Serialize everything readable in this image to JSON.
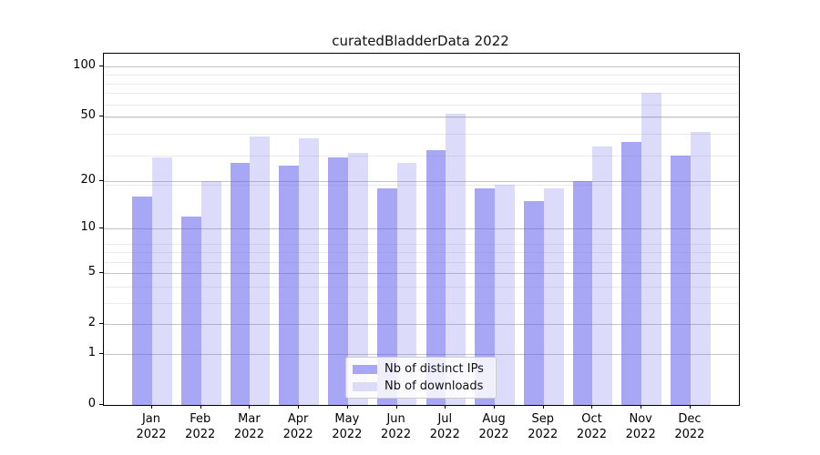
{
  "title": "curatedBladderData 2022",
  "legend": {
    "items": [
      {
        "label": "Nb of distinct IPs",
        "color": "#a7a7f5"
      },
      {
        "label": "Nb of downloads",
        "color": "#dcdcf9"
      }
    ]
  },
  "chart_data": {
    "type": "bar",
    "title": "curatedBladderData 2022",
    "categories": [
      "Jan 2022",
      "Feb 2022",
      "Mar 2022",
      "Apr 2022",
      "May 2022",
      "Jun 2022",
      "Jul 2022",
      "Aug 2022",
      "Sep 2022",
      "Oct 2022",
      "Nov 2022",
      "Dec 2022"
    ],
    "series": [
      {
        "name": "Nb of distinct IPs",
        "color": "rgba(95,95,237,0.55)",
        "swatch": "#a7a7f5",
        "values": [
          16,
          12,
          26,
          25,
          28,
          18,
          31,
          18,
          15,
          20,
          35,
          29
        ]
      },
      {
        "name": "Nb of downloads",
        "color": "rgba(115,115,235,0.25)",
        "swatch": "#dcdcf9",
        "values": [
          28,
          20,
          38,
          37,
          30,
          26,
          52,
          19,
          18,
          33,
          69,
          40
        ]
      }
    ],
    "xlabel": "",
    "ylabel": "",
    "yscale": "log1p",
    "yticks": [
      0,
      1,
      2,
      5,
      10,
      20,
      50,
      100
    ],
    "ylim": [
      0,
      119
    ],
    "grid": true,
    "legend_position": "lower center"
  }
}
